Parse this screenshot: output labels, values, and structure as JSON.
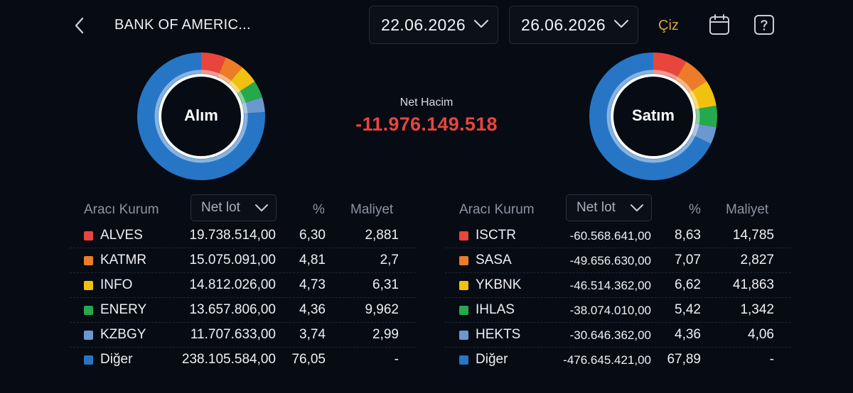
{
  "header": {
    "title": "BANK OF AMERIC...",
    "start_date": "22.06.2026",
    "end_date": "26.06.2026",
    "draw_label": "Çiz"
  },
  "summary": {
    "buy_label": "Alım",
    "sell_label": "Satım",
    "net_volume_label": "Net Hacim",
    "net_volume_value": "-11.976.149.518"
  },
  "colors": {
    "red": "#e8453c",
    "orange": "#ec7c2a",
    "yellow": "#f2c00f",
    "green": "#25a94d",
    "lightblue": "#6b98cf",
    "blue": "#2776c6"
  },
  "buy_table": {
    "headers": {
      "broker": "Aracı Kurum",
      "sort": "Net lot",
      "pct": "%",
      "cost": "Maliyet"
    },
    "rows": [
      {
        "name": "ALVES",
        "lot": "19.738.514,00",
        "pct": "6,30",
        "cost": "2,881",
        "color": "#e8453c",
        "share": 6.3
      },
      {
        "name": "KATMR",
        "lot": "15.075.091,00",
        "pct": "4,81",
        "cost": "2,7",
        "color": "#ec7c2a",
        "share": 4.81
      },
      {
        "name": "INFO",
        "lot": "14.812.026,00",
        "pct": "4,73",
        "cost": "6,31",
        "color": "#f2c00f",
        "share": 4.73
      },
      {
        "name": "ENERY",
        "lot": "13.657.806,00",
        "pct": "4,36",
        "cost": "9,962",
        "color": "#25a94d",
        "share": 4.36
      },
      {
        "name": "KZBGY",
        "lot": "11.707.633,00",
        "pct": "3,74",
        "cost": "2,99",
        "color": "#6b98cf",
        "share": 3.74
      },
      {
        "name": "Diğer",
        "lot": "238.105.584,00",
        "pct": "76,05",
        "cost": "-",
        "color": "#2776c6",
        "share": 76.05
      }
    ]
  },
  "sell_table": {
    "headers": {
      "broker": "Aracı Kurum",
      "sort": "Net lot",
      "pct": "%",
      "cost": "Maliyet"
    },
    "rows": [
      {
        "name": "ISCTR",
        "lot": "-60.568.641,00",
        "pct": "8,63",
        "cost": "14,785",
        "color": "#e8453c",
        "share": 8.63
      },
      {
        "name": "SASA",
        "lot": "-49.656.630,00",
        "pct": "7,07",
        "cost": "2,827",
        "color": "#ec7c2a",
        "share": 7.07
      },
      {
        "name": "YKBNK",
        "lot": "-46.514.362,00",
        "pct": "6,62",
        "cost": "41,863",
        "color": "#f2c00f",
        "share": 6.62
      },
      {
        "name": "IHLAS",
        "lot": "-38.074.010,00",
        "pct": "5,42",
        "cost": "1,342",
        "color": "#25a94d",
        "share": 5.42
      },
      {
        "name": "HEKTS",
        "lot": "-30.646.362,00",
        "pct": "4,36",
        "cost": "4,06",
        "color": "#6b98cf",
        "share": 4.36
      },
      {
        "name": "Diğer",
        "lot": "-476.645.421,00",
        "pct": "67,89",
        "cost": "-",
        "color": "#2776c6",
        "share": 67.89
      }
    ]
  }
}
